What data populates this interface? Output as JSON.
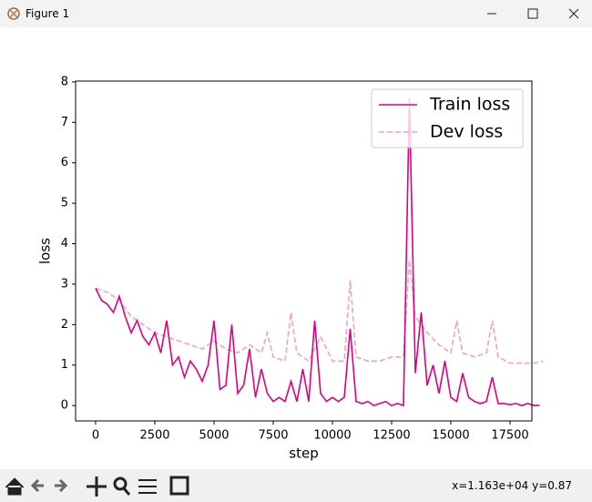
{
  "window": {
    "title": "Figure 1",
    "status": "x=1.163e+04 y=0.87"
  },
  "chart_data": {
    "type": "line",
    "x_label": "step",
    "y_label": "loss",
    "xlim": [
      -846,
      18423
    ],
    "ylim": [
      -0.38,
      8.02
    ],
    "xticks": [
      0,
      2500,
      5000,
      7500,
      10000,
      12500,
      15000,
      17500
    ],
    "yticks": [
      0,
      1,
      2,
      3,
      4,
      5,
      6,
      7,
      8
    ],
    "legend": "upper right",
    "series": [
      {
        "name": "Train loss",
        "color": "#e0007f",
        "style": "solid",
        "x": [
          0,
          250,
          500,
          750,
          1000,
          1250,
          1500,
          1750,
          2000,
          2250,
          2500,
          2750,
          3000,
          3250,
          3500,
          3750,
          4000,
          4250,
          4500,
          4750,
          5000,
          5250,
          5500,
          5750,
          6000,
          6250,
          6500,
          6750,
          7000,
          7250,
          7500,
          7750,
          8000,
          8250,
          8500,
          8750,
          9000,
          9250,
          9500,
          9750,
          10000,
          10250,
          10500,
          10750,
          11000,
          11250,
          11500,
          11750,
          12000,
          12250,
          12500,
          12750,
          13000,
          13250,
          13500,
          13750,
          14000,
          14250,
          14500,
          14750,
          15000,
          15250,
          15500,
          15750,
          16000,
          16250,
          16500,
          16750,
          17000,
          17250,
          17500,
          17750,
          18000,
          18250,
          18500,
          18750
        ],
        "values": [
          2.9,
          2.6,
          2.5,
          2.3,
          2.7,
          2.2,
          1.8,
          2.1,
          1.7,
          1.5,
          1.8,
          1.3,
          2.1,
          1.0,
          1.2,
          0.7,
          1.1,
          0.9,
          0.6,
          1.0,
          2.1,
          0.4,
          0.5,
          2.0,
          0.3,
          0.5,
          1.4,
          0.2,
          0.9,
          0.3,
          0.1,
          0.2,
          0.1,
          0.6,
          0.1,
          0.9,
          0.1,
          2.1,
          0.3,
          0.1,
          0.2,
          0.1,
          0.2,
          1.9,
          0.1,
          0.05,
          0.1,
          0.0,
          0.05,
          0.1,
          0.0,
          0.05,
          0.0,
          7.6,
          0.8,
          2.3,
          0.5,
          1.0,
          0.3,
          1.1,
          0.2,
          0.1,
          0.8,
          0.2,
          0.1,
          0.05,
          0.1,
          0.7,
          0.05,
          0.05,
          0.02,
          0.05,
          0.0,
          0.05,
          0.0,
          0.0
        ]
      },
      {
        "name": "Dev loss",
        "color": "#f4a0c0",
        "style": "dashed",
        "x": [
          0,
          500,
          1000,
          1500,
          2000,
          2500,
          3000,
          3500,
          4000,
          4500,
          5000,
          5500,
          6000,
          6500,
          7000,
          7250,
          7500,
          8000,
          8250,
          8500,
          9000,
          9500,
          10000,
          10500,
          10750,
          11000,
          11500,
          12000,
          12500,
          13000,
          13250,
          13500,
          14000,
          14500,
          15000,
          15250,
          15500,
          16000,
          16500,
          16750,
          17000,
          17500,
          18000,
          18500,
          18900
        ],
        "values": [
          2.9,
          2.8,
          2.6,
          2.2,
          2.0,
          1.8,
          1.7,
          1.6,
          1.5,
          1.4,
          1.6,
          1.4,
          1.3,
          1.5,
          1.3,
          1.8,
          1.2,
          1.1,
          2.3,
          1.3,
          1.1,
          1.7,
          1.1,
          1.1,
          3.1,
          1.2,
          1.1,
          1.1,
          1.2,
          1.2,
          3.6,
          2.2,
          1.8,
          1.5,
          1.3,
          2.1,
          1.3,
          1.2,
          1.3,
          2.1,
          1.2,
          1.05,
          1.05,
          1.05,
          1.1
        ]
      }
    ]
  }
}
